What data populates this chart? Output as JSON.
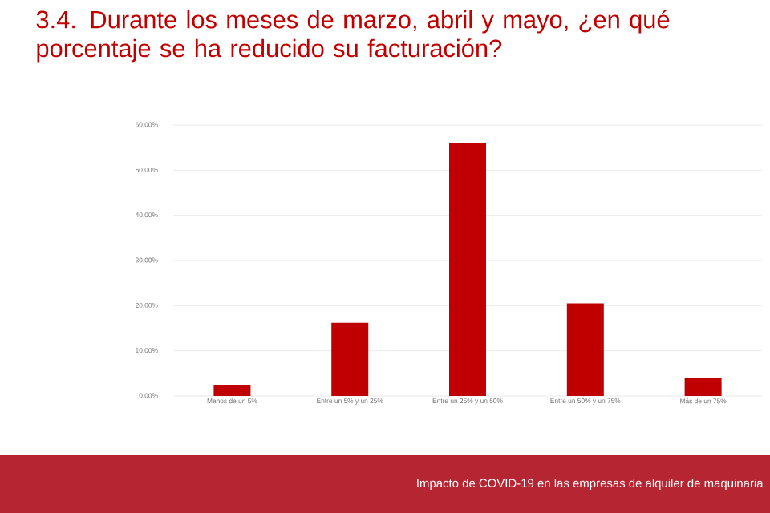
{
  "chart_data": {
    "type": "bar",
    "title": "3.4. Durante los meses de marzo, abril y mayo, ¿en qué porcentaje se ha reducido su facturación?",
    "categories": [
      "Menos de un 5%",
      "Entre un 5% y un 25%",
      "Entre un 25% y un 50%",
      "Entre un 50% y un 75%",
      "Más de un 75%"
    ],
    "values": [
      2.5,
      16.2,
      56.0,
      20.5,
      4.0
    ],
    "color": "#c00000",
    "ylim": [
      0,
      60
    ],
    "yticks": [
      {
        "value": 0,
        "label": "0,00%"
      },
      {
        "value": 10,
        "label": "10,00%"
      },
      {
        "value": 20,
        "label": "20,00%"
      },
      {
        "value": 30,
        "label": "30,00%"
      },
      {
        "value": 40,
        "label": "40,00%"
      },
      {
        "value": 50,
        "label": "50,00%"
      },
      {
        "value": 60,
        "label": "60,00%"
      }
    ],
    "grid": "y",
    "annotations": [
      "Impacto de COVID-19 en las empresas de alquiler de maquinaria"
    ]
  }
}
